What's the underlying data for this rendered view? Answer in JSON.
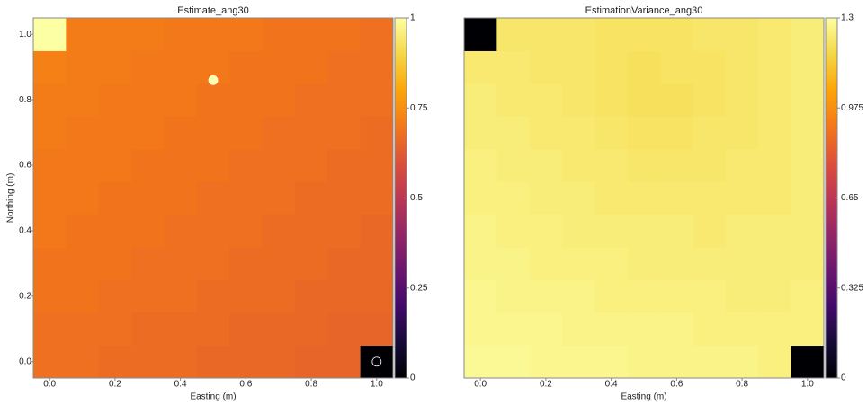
{
  "chart_data": [
    {
      "type": "heatmap",
      "title": "Estimate_ang30",
      "xlabel": "Easting (m)",
      "ylabel": "Northing (m)",
      "colormap": "inferno",
      "x": [
        0,
        0.1,
        0.2,
        0.3,
        0.4,
        0.5,
        0.6,
        0.7,
        0.8,
        0.9,
        1
      ],
      "y": [
        0,
        0.1,
        0.2,
        0.3,
        0.4,
        0.5,
        0.6,
        0.7,
        0.8,
        0.9,
        1
      ],
      "z": [
        [
          0.68,
          0.68,
          0.67,
          0.67,
          0.67,
          0.66,
          0.66,
          0.66,
          0.65,
          0.65,
          0
        ],
        [
          0.68,
          0.68,
          0.68,
          0.67,
          0.67,
          0.67,
          0.66,
          0.66,
          0.66,
          0.65,
          0.65
        ],
        [
          0.69,
          0.69,
          0.68,
          0.68,
          0.68,
          0.67,
          0.67,
          0.67,
          0.66,
          0.66,
          0.66
        ],
        [
          0.69,
          0.69,
          0.69,
          0.68,
          0.68,
          0.68,
          0.67,
          0.67,
          0.67,
          0.66,
          0.66
        ],
        [
          0.7,
          0.69,
          0.69,
          0.69,
          0.68,
          0.68,
          0.68,
          0.67,
          0.67,
          0.67,
          0.66
        ],
        [
          0.7,
          0.7,
          0.69,
          0.69,
          0.69,
          0.68,
          0.68,
          0.68,
          0.67,
          0.67,
          0.67
        ],
        [
          0.7,
          0.7,
          0.7,
          0.69,
          0.69,
          0.69,
          0.68,
          0.68,
          0.68,
          0.67,
          0.67
        ],
        [
          0.71,
          0.7,
          0.7,
          0.7,
          0.69,
          0.69,
          0.69,
          0.68,
          0.68,
          0.68,
          0.67
        ],
        [
          0.71,
          0.71,
          0.7,
          0.7,
          0.7,
          0.69,
          0.69,
          0.69,
          0.68,
          0.68,
          0.68
        ],
        [
          0.72,
          0.71,
          0.71,
          0.7,
          0.7,
          0.7,
          0.69,
          0.69,
          0.69,
          0.68,
          0.68
        ],
        [
          1,
          0.71,
          0.71,
          0.71,
          0.7,
          0.7,
          0.7,
          0.69,
          0.69,
          0.69,
          0.68
        ]
      ],
      "points": {
        "x": [
          0.5,
          1
        ],
        "y": [
          0.86,
          0
        ],
        "values": [
          1,
          0
        ]
      },
      "xlim": [
        -0.05,
        1.05
      ],
      "ylim": [
        -0.05,
        1.05
      ],
      "xticks": [
        {
          "value": 0,
          "label": "0.0"
        },
        0.2,
        0.4,
        0.6,
        0.8,
        {
          "value": 1,
          "label": "1.0"
        }
      ],
      "yticks": [
        {
          "value": 0,
          "label": "0.0"
        },
        0.2,
        0.4,
        0.6,
        0.8,
        {
          "value": 1,
          "label": "1.0"
        }
      ],
      "clim": [
        0,
        1
      ],
      "cticks": [
        0,
        0.25,
        0.5,
        0.75,
        1
      ]
    },
    {
      "type": "heatmap",
      "title": "EstimationVariance_ang30",
      "xlabel": "Easting (m)",
      "colormap": "inferno",
      "x": [
        0,
        0.1,
        0.2,
        0.3,
        0.4,
        0.5,
        0.6,
        0.7,
        0.8,
        0.9,
        1
      ],
      "y": [
        0,
        0.1,
        0.2,
        0.3,
        0.4,
        0.5,
        0.6,
        0.7,
        0.8,
        0.9,
        1
      ],
      "z": [
        [
          1.28,
          1.28,
          1.27,
          1.27,
          1.27,
          1.26,
          1.26,
          1.26,
          1.26,
          1.25,
          0
        ],
        [
          1.27,
          1.27,
          1.27,
          1.26,
          1.26,
          1.26,
          1.26,
          1.25,
          1.25,
          1.25,
          1.25
        ],
        [
          1.27,
          1.26,
          1.26,
          1.26,
          1.25,
          1.25,
          1.25,
          1.25,
          1.24,
          1.24,
          1.25
        ],
        [
          1.26,
          1.26,
          1.25,
          1.25,
          1.25,
          1.24,
          1.24,
          1.24,
          1.24,
          1.24,
          1.24
        ],
        [
          1.26,
          1.25,
          1.25,
          1.24,
          1.24,
          1.24,
          1.24,
          1.23,
          1.24,
          1.24,
          1.24
        ],
        [
          1.25,
          1.25,
          1.24,
          1.24,
          1.23,
          1.23,
          1.23,
          1.23,
          1.23,
          1.23,
          1.24
        ],
        [
          1.25,
          1.24,
          1.24,
          1.23,
          1.23,
          1.22,
          1.22,
          1.22,
          1.23,
          1.23,
          1.24
        ],
        [
          1.24,
          1.24,
          1.23,
          1.23,
          1.22,
          1.21,
          1.21,
          1.22,
          1.22,
          1.23,
          1.24
        ],
        [
          1.24,
          1.23,
          1.23,
          1.22,
          1.21,
          1.2,
          1.2,
          1.21,
          1.22,
          1.23,
          1.24
        ],
        [
          1.23,
          1.23,
          1.22,
          1.22,
          1.21,
          1.2,
          1.21,
          1.21,
          1.22,
          1.23,
          1.24
        ],
        [
          0,
          1.22,
          1.22,
          1.22,
          1.21,
          1.21,
          1.21,
          1.22,
          1.22,
          1.23,
          1.24
        ]
      ],
      "xlim": [
        -0.05,
        1.05
      ],
      "ylim": [
        -0.05,
        1.05
      ],
      "xticks": [
        {
          "value": 0,
          "label": "0.0"
        },
        0.2,
        0.4,
        0.6,
        0.8,
        {
          "value": 1,
          "label": "1.0"
        }
      ],
      "clim": [
        0,
        1.3
      ],
      "cticks": [
        0,
        0.325,
        0.65,
        0.975,
        1.3
      ]
    }
  ]
}
